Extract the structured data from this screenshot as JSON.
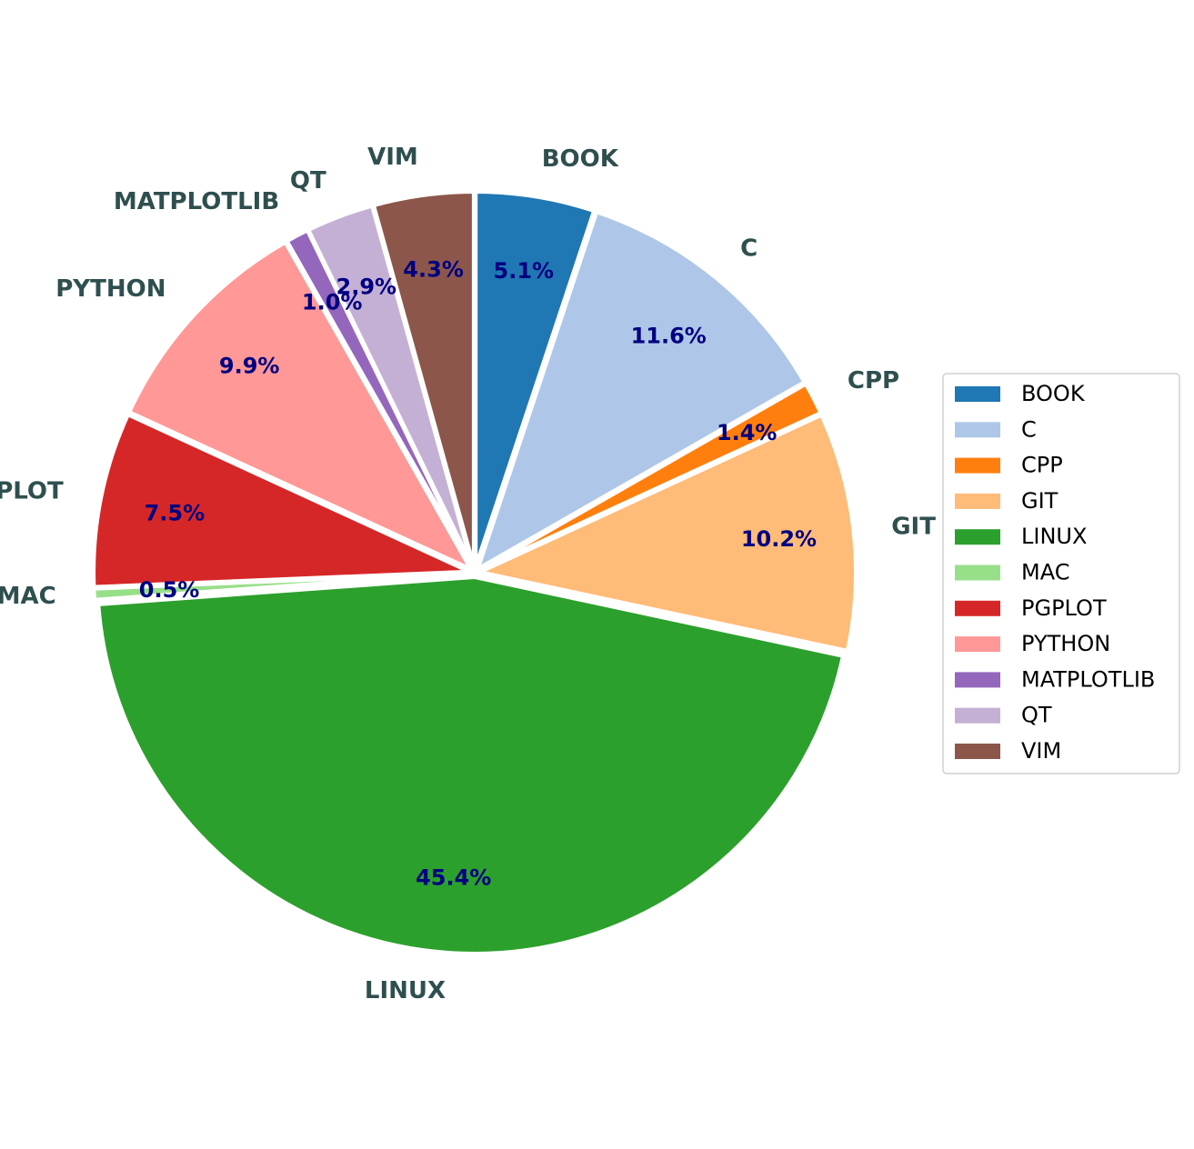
{
  "chart_data": {
    "type": "pie",
    "title": "",
    "start_angle_deg": 90,
    "direction": "clockwise",
    "legend_position": "center-right",
    "slices": [
      {
        "label": "BOOK",
        "value": 5.1,
        "pct_label": "5.1%",
        "color": "#1f77b4"
      },
      {
        "label": "C",
        "value": 11.6,
        "pct_label": "11.6%",
        "color": "#aec7e8"
      },
      {
        "label": "CPP",
        "value": 1.4,
        "pct_label": "1.4%",
        "color": "#ff7f0e"
      },
      {
        "label": "GIT",
        "value": 10.2,
        "pct_label": "10.2%",
        "color": "#ffbb78"
      },
      {
        "label": "LINUX",
        "value": 45.4,
        "pct_label": "45.4%",
        "color": "#2ca02c"
      },
      {
        "label": "MAC",
        "value": 0.5,
        "pct_label": "0.5%",
        "color": "#98df8a"
      },
      {
        "label": "PGPLOT",
        "value": 7.5,
        "pct_label": "7.5%",
        "color": "#d62728"
      },
      {
        "label": "PYTHON",
        "value": 9.9,
        "pct_label": "9.9%",
        "color": "#ff9896"
      },
      {
        "label": "MATPLOTLIB",
        "value": 1.0,
        "pct_label": "1.0%",
        "color": "#9467bd"
      },
      {
        "label": "QT",
        "value": 2.9,
        "pct_label": "2.9%",
        "color": "#c5b0d5"
      },
      {
        "label": "VIM",
        "value": 4.3,
        "pct_label": "4.3%",
        "color": "#8c564b"
      }
    ],
    "legend": [
      "BOOK",
      "C",
      "CPP",
      "GIT",
      "LINUX",
      "MAC",
      "PGPLOT",
      "PYTHON",
      "MATPLOTLIB",
      "QT",
      "VIM"
    ],
    "label_color": "#2f4f4f",
    "pct_label_color": "#000080"
  }
}
